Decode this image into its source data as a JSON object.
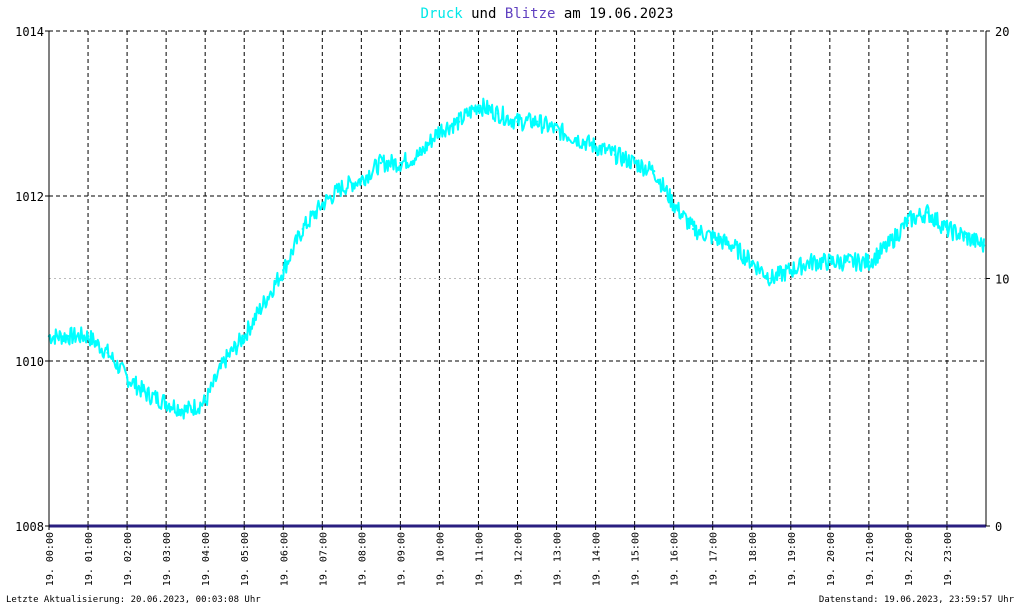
{
  "chart_data": {
    "type": "line",
    "title": {
      "part1": "Druck",
      "part2": " und ",
      "part3": "Blitze",
      "part4": " am 19.06.2023",
      "colors": {
        "part1": "#00e8e8",
        "part2": "#000000",
        "part3": "#6040c0",
        "part4": "#000000"
      }
    },
    "ylim_left": [
      1008,
      1014
    ],
    "yticks_left": [
      "1014",
      "1012",
      "1010",
      "1008"
    ],
    "yticks_left_values": [
      1014,
      1012,
      1010,
      1008
    ],
    "ylim_right": [
      0,
      20
    ],
    "yticks_right": [
      "20",
      "10",
      "0"
    ],
    "yticks_right_values": [
      20,
      10,
      0
    ],
    "xlim_hours": [
      0,
      24
    ],
    "xticks": [
      "19. 00:00",
      "19. 01:00",
      "19. 02:00",
      "19. 03:00",
      "19. 04:00",
      "19. 05:00",
      "19. 06:00",
      "19. 07:00",
      "19. 08:00",
      "19. 09:00",
      "19. 10:00",
      "19. 11:00",
      "19. 12:00",
      "19. 13:00",
      "19. 14:00",
      "19. 15:00",
      "19. 16:00",
      "19. 17:00",
      "19. 18:00",
      "19. 19:00",
      "19. 20:00",
      "19. 21:00",
      "19. 22:00",
      "19. 23:00"
    ],
    "grid": true,
    "series": [
      {
        "name": "Druck",
        "color": "#00ffff",
        "x_hours": [
          0,
          0.5,
          1,
          1.5,
          2,
          2.5,
          3,
          3.5,
          4,
          4.5,
          5,
          5.5,
          6,
          6.5,
          7,
          7.5,
          8,
          8.5,
          9,
          9.5,
          10,
          10.5,
          11,
          11.5,
          12,
          12.5,
          13,
          13.5,
          14,
          14.5,
          15,
          15.5,
          16,
          16.5,
          17,
          17.5,
          18,
          18.5,
          19,
          19.5,
          20,
          20.5,
          21,
          21.5,
          22,
          22.5,
          23,
          23.5,
          23.95
        ],
        "values": [
          1010.3,
          1010.3,
          1010.3,
          1010.1,
          1009.8,
          1009.6,
          1009.5,
          1009.4,
          1009.5,
          1010.0,
          1010.3,
          1010.7,
          1011.1,
          1011.6,
          1011.9,
          1012.1,
          1012.2,
          1012.4,
          1012.4,
          1012.5,
          1012.8,
          1012.9,
          1013.1,
          1013.0,
          1012.9,
          1012.9,
          1012.8,
          1012.7,
          1012.6,
          1012.5,
          1012.4,
          1012.3,
          1011.9,
          1011.6,
          1011.5,
          1011.4,
          1011.2,
          1011.0,
          1011.1,
          1011.2,
          1011.2,
          1011.2,
          1011.2,
          1011.4,
          1011.7,
          1011.8,
          1011.6,
          1011.5,
          1011.4
        ]
      },
      {
        "name": "Blitze",
        "color": "#2a1f80",
        "x_hours": [
          0,
          24
        ],
        "values": [
          0,
          0
        ],
        "axis": "right"
      }
    ]
  },
  "footer": {
    "left": "Letzte Aktualisierung: 20.06.2023, 00:03:08 Uhr",
    "right": "Datenstand: 19.06.2023, 23:59:57 Uhr"
  }
}
